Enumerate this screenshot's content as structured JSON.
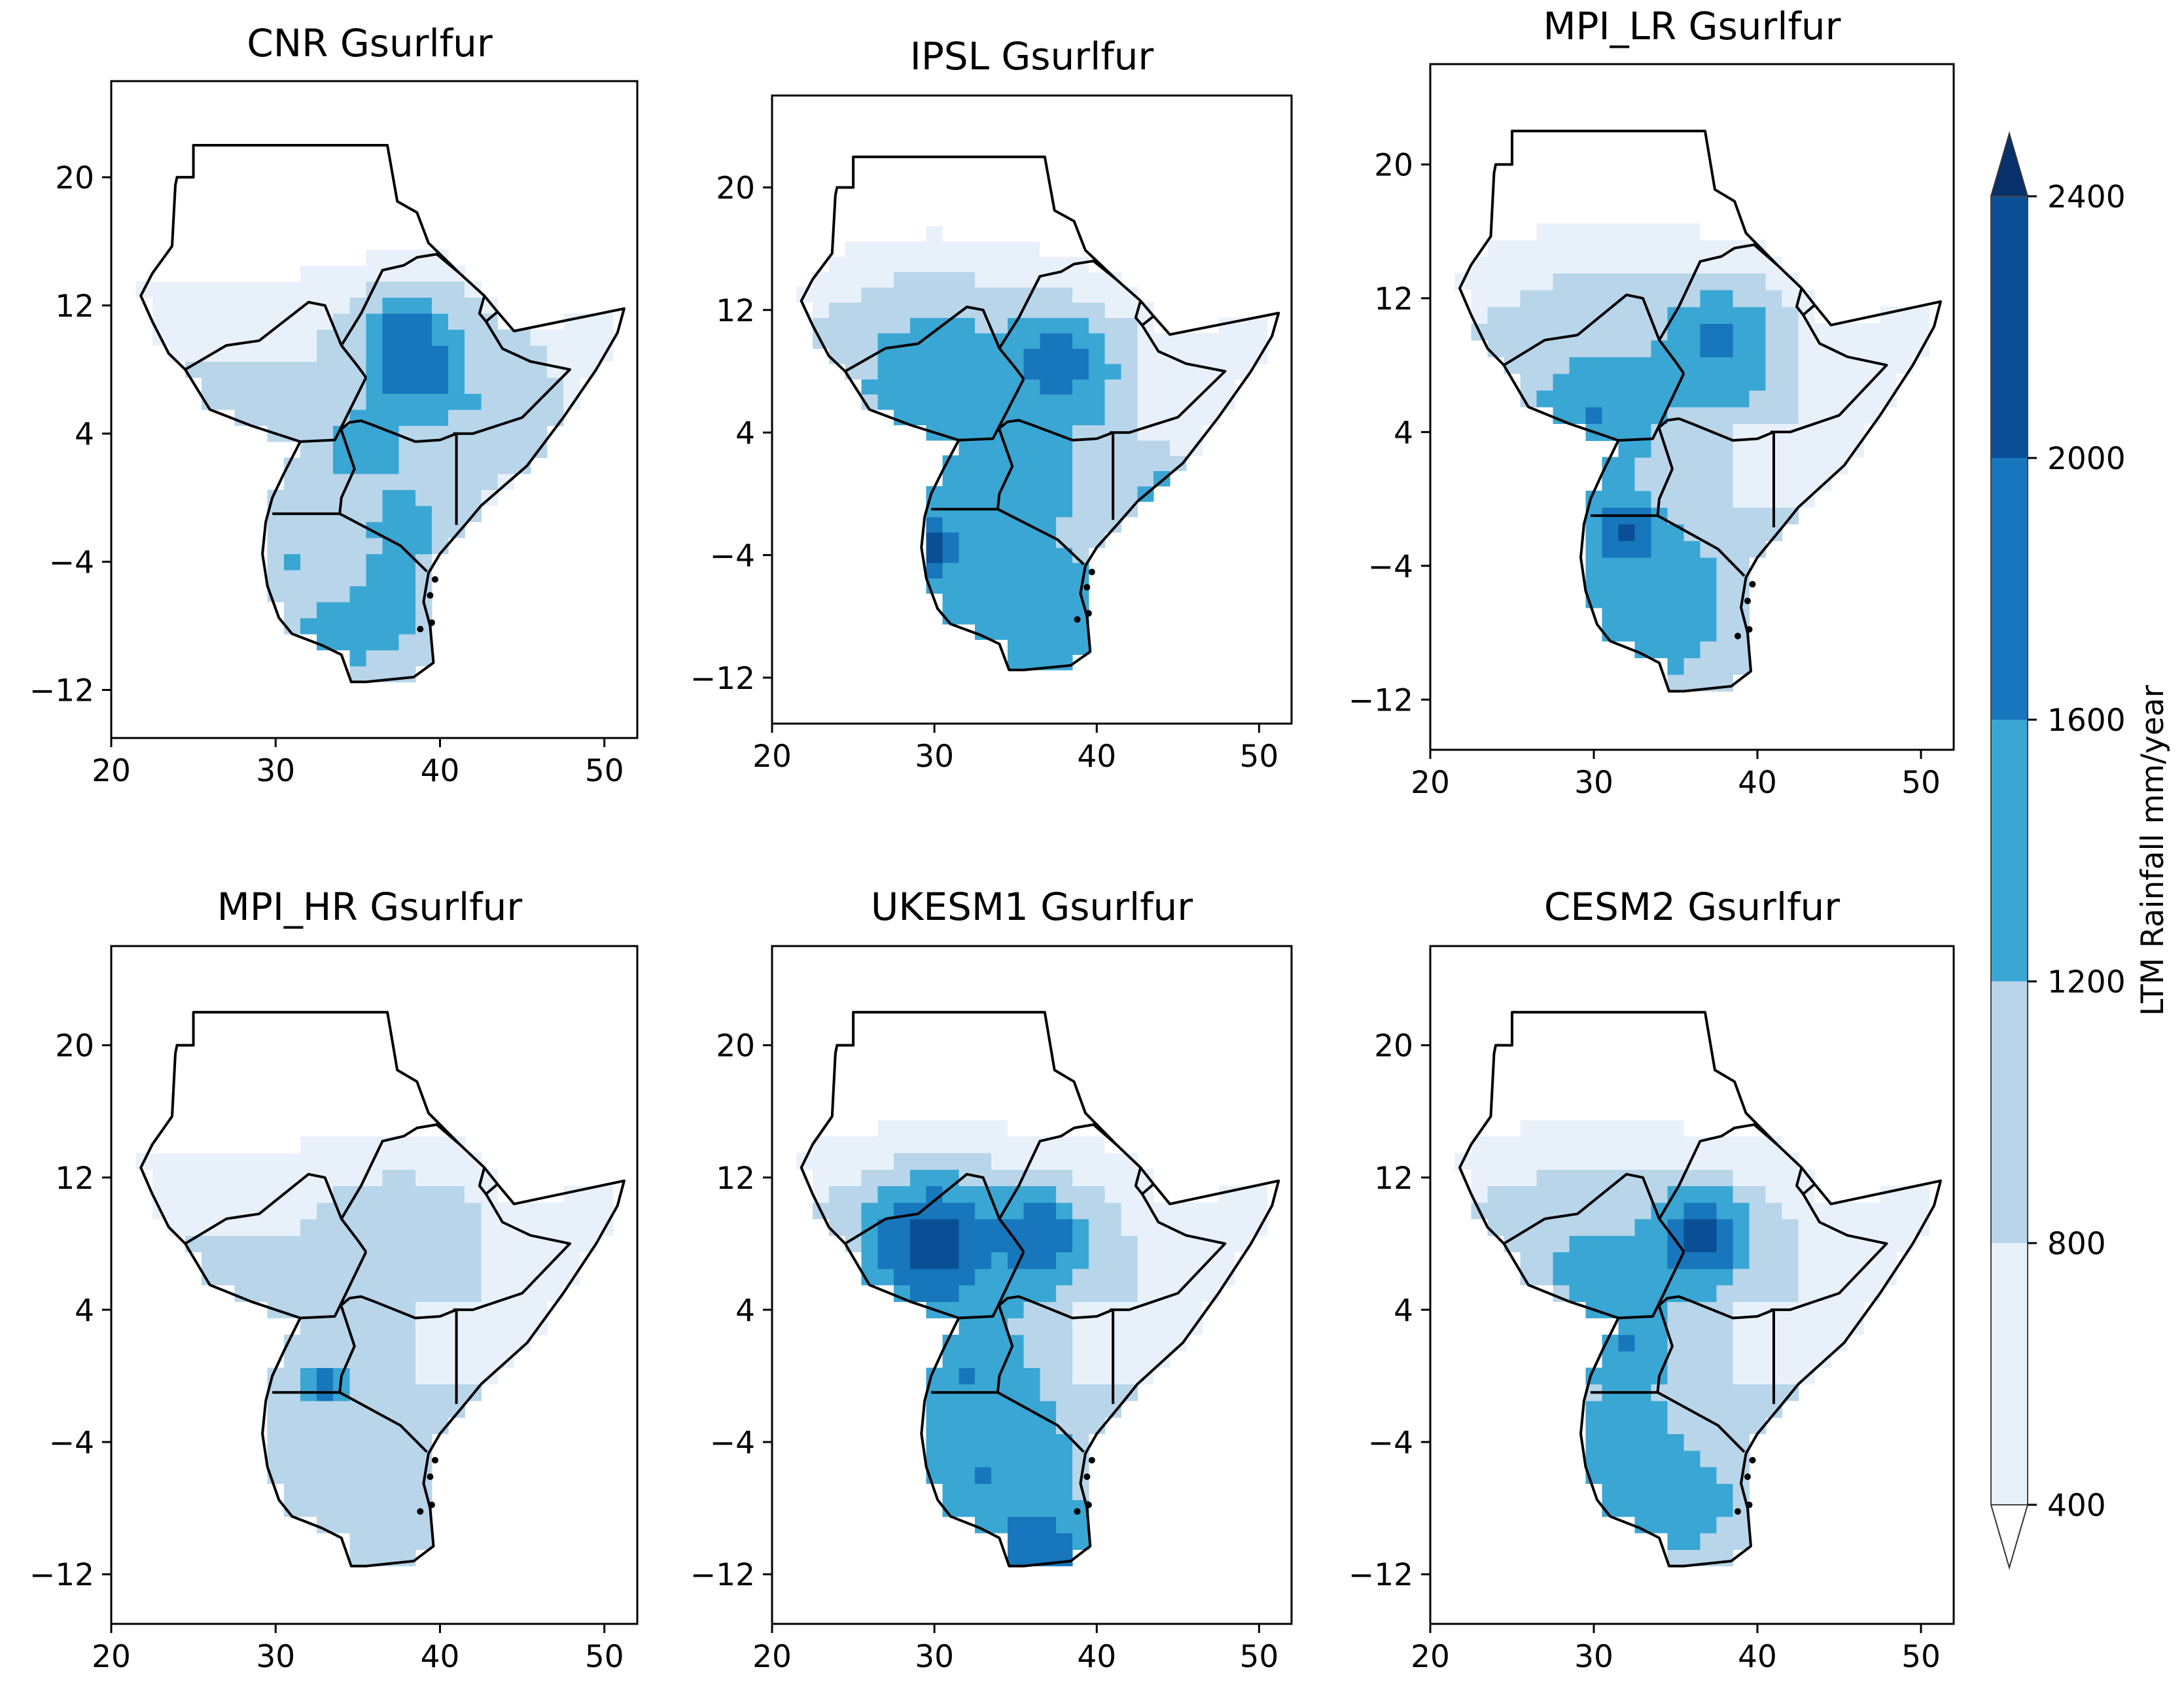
{
  "chart_data": {
    "type": "heatmap",
    "map_region": "East Africa (Sudan, Ethiopia, Somalia, Kenya, Uganda, Tanzania)",
    "colorbar": {
      "label": "LTM Rainfall mm/year",
      "ticks": [
        400,
        800,
        1200,
        1600,
        2000,
        2400
      ],
      "levels": [
        400,
        800,
        1200,
        1600,
        2000,
        2400
      ],
      "colors": [
        "#e8f1fa",
        "#b8d5ea",
        "#3aa6d3",
        "#1776bc",
        "#0a4f95"
      ],
      "extend_colors": {
        "below": "#ffffff",
        "above": "#08306b"
      },
      "extend": "both"
    },
    "x_ticks": [
      20,
      30,
      40,
      50
    ],
    "y_ticks": [
      20,
      12,
      4,
      -4,
      -12
    ],
    "xlim": [
      20,
      52
    ],
    "ylim": [
      -15,
      26
    ],
    "panels": [
      {
        "title": "CNR Gsurlfur",
        "min_mm": 400,
        "max_mm": 2400
      },
      {
        "title": "IPSL Gsurlfur",
        "min_mm": 400,
        "max_mm": 2400
      },
      {
        "title": "MPI_LR Gsurlfur",
        "min_mm": 400,
        "max_mm": 2400
      },
      {
        "title": "MPI_HR Gsurlfur",
        "min_mm": 400,
        "max_mm": 2000
      },
      {
        "title": "UKESM1 Gsurlfur",
        "min_mm": 400,
        "max_mm": 2400
      },
      {
        "title": "CESM2 Gsurlfur",
        "min_mm": 400,
        "max_mm": 2400
      }
    ],
    "hotspots": [
      [
        [
          38.5,
          8,
          2.8,
          2000
        ],
        [
          38,
          10.5,
          3,
          1700
        ],
        [
          42,
          6,
          6,
          1200
        ],
        [
          35,
          3,
          3,
          1300
        ],
        [
          38,
          -2,
          3.5,
          1300
        ],
        [
          36.5,
          -7,
          2.5,
          1550
        ],
        [
          31,
          -4,
          3,
          1200
        ],
        [
          33,
          -9.5,
          2.5,
          1600
        ]
      ],
      [
        [
          37.5,
          8.5,
          3.5,
          1900
        ],
        [
          30,
          8,
          7,
          1350
        ],
        [
          29.5,
          -3.5,
          2.2,
          2200
        ],
        [
          33,
          -6,
          6,
          1450
        ],
        [
          38,
          -9,
          4,
          1500
        ],
        [
          36,
          2,
          5,
          1300
        ],
        [
          44,
          0,
          3,
          1350
        ]
      ],
      [
        [
          37.5,
          9.5,
          4,
          1650
        ],
        [
          30,
          5,
          4,
          1600
        ],
        [
          32,
          -2,
          1.8,
          2300
        ],
        [
          33,
          -6,
          6,
          1450
        ],
        [
          30,
          9,
          6,
          1100
        ]
      ],
      [
        [
          37.5,
          8.5,
          4,
          1150
        ],
        [
          33,
          -0.5,
          1.3,
          2000
        ],
        [
          33,
          -6,
          6,
          1050
        ]
      ],
      [
        [
          30,
          8,
          4.5,
          2150
        ],
        [
          36.5,
          8.5,
          3,
          1900
        ],
        [
          32,
          0,
          3.5,
          1600
        ],
        [
          33,
          -6,
          6,
          1600
        ],
        [
          36.5,
          -10.5,
          2.5,
          1900
        ]
      ],
      [
        [
          36.5,
          8.5,
          3,
          2100
        ],
        [
          32,
          2,
          3,
          1650
        ],
        [
          32,
          -5,
          4,
          1500
        ],
        [
          30,
          7,
          6,
          1250
        ],
        [
          36,
          -8,
          4,
          1300
        ]
      ]
    ]
  }
}
